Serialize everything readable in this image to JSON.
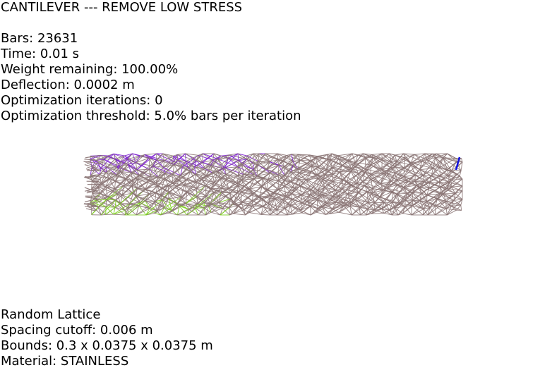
{
  "title": "CANTILEVER --- REMOVE LOW STRESS",
  "stats": {
    "bars": "Bars: 23631",
    "time": "Time: 0.01 s",
    "weight": "Weight remaining: 100.00%",
    "deflection": "Deflection: 0.0002 m",
    "iterations": "Optimization iterations: 0",
    "threshold": "Optimization threshold: 5.0% bars per iteration"
  },
  "config": {
    "lattice": "Random Lattice",
    "spacing": "Spacing cutoff: 0.006 m",
    "bounds": "Bounds: 0.3 x 0.0375 x 0.0375 m",
    "material": "Material: STAINLESS"
  },
  "colors": {
    "background": "#ffffff",
    "text": "#000000",
    "bar_neutral": "#8a7474",
    "bar_tension": "#7a1ad0",
    "bar_compression": "#7acc1a",
    "load_marker": "#1010e0"
  }
}
